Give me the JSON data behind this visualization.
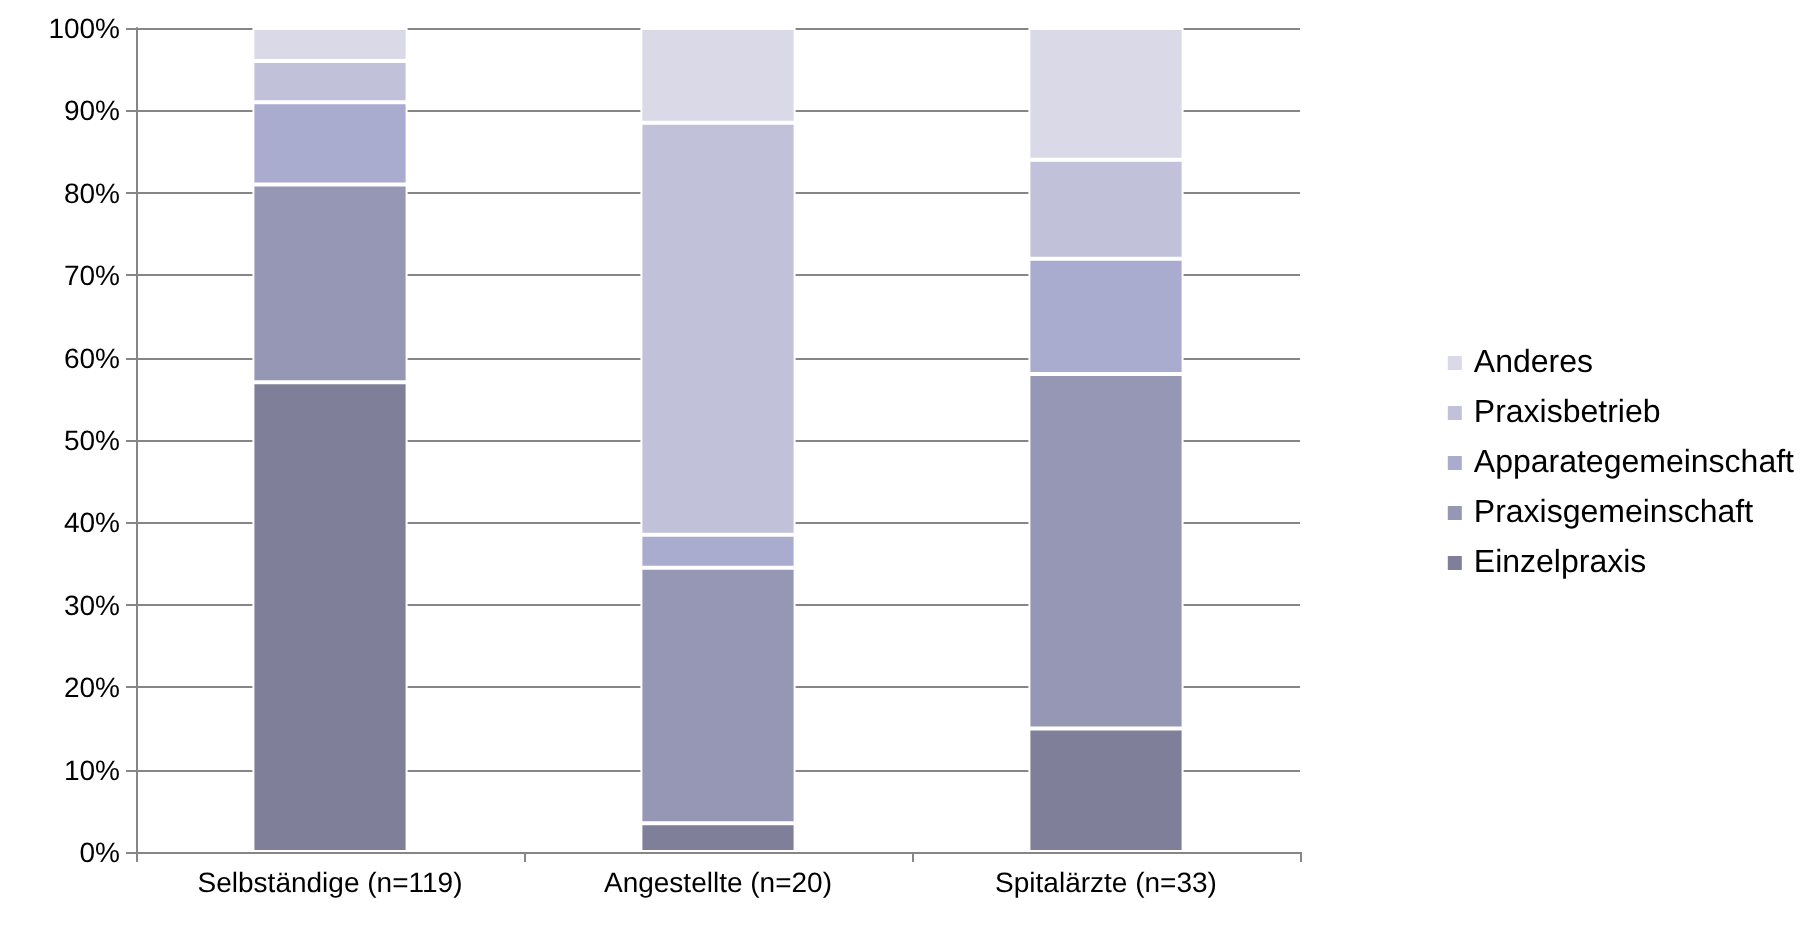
{
  "chart_data": {
    "type": "bar",
    "stacked": true,
    "categories": [
      "Selbständige (n=119)",
      "Angestellte (n=20)",
      "Spitalärzte (n=33)"
    ],
    "series": [
      {
        "name": "Einzelpraxis",
        "color": "#7f7f99",
        "values": [
          57,
          3.5,
          15
        ]
      },
      {
        "name": "Praxisgemeinschaft",
        "color": "#9697b5",
        "values": [
          24,
          31,
          43
        ]
      },
      {
        "name": "Apparategemeinschaft",
        "color": "#a9abcf",
        "values": [
          10,
          4,
          14
        ]
      },
      {
        "name": "Praxisbetrieb",
        "color": "#c1c1da",
        "values": [
          5,
          50,
          12
        ]
      },
      {
        "name": "Anderes",
        "color": "#d9d9e8",
        "values": [
          4,
          11.5,
          16
        ]
      }
    ],
    "ylim": [
      0,
      100
    ],
    "yticks": [
      {
        "value": 0,
        "label": "0%"
      },
      {
        "value": 10,
        "label": "10%"
      },
      {
        "value": 20,
        "label": "20%"
      },
      {
        "value": 30,
        "label": "30%"
      },
      {
        "value": 40,
        "label": "40%"
      },
      {
        "value": 50,
        "label": "50%"
      },
      {
        "value": 60,
        "label": "60%"
      },
      {
        "value": 70,
        "label": "70%"
      },
      {
        "value": 80,
        "label": "80%"
      },
      {
        "value": 90,
        "label": "90%"
      },
      {
        "value": 100,
        "label": "100%"
      }
    ],
    "grid": "y",
    "legend": "right"
  }
}
